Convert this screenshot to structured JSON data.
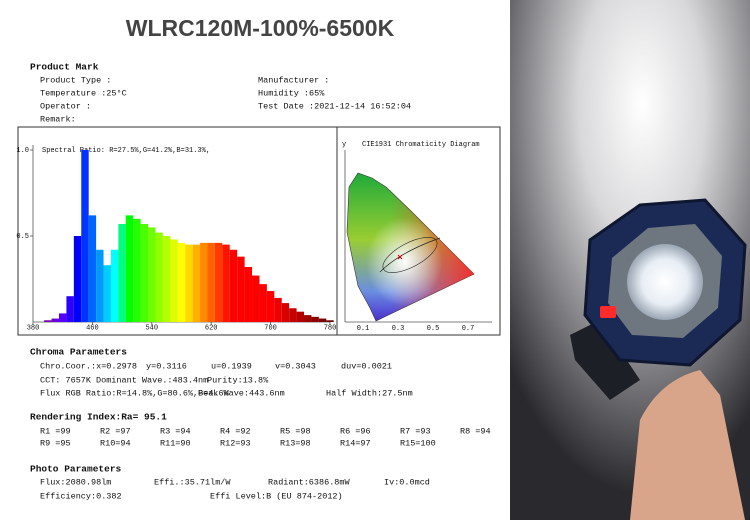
{
  "title": "WLRC120M-100%-6500K",
  "product_mark": {
    "heading": "Product Mark",
    "left": [
      "Product Type :",
      "Temperature :25°C",
      "Operator :",
      "Remark:"
    ],
    "right": [
      "Manufacturer :",
      "Humidity :65%",
      "Test Date :2021-12-14 16:52:04"
    ]
  },
  "chart_data": {
    "type": "area",
    "annotation": "Spectral Ratio: R=27.5%,G=41.2%,B=31.3%,",
    "x": [
      380,
      390,
      400,
      410,
      420,
      430,
      440,
      450,
      460,
      470,
      480,
      490,
      500,
      510,
      520,
      530,
      540,
      550,
      560,
      570,
      580,
      590,
      600,
      610,
      620,
      630,
      640,
      650,
      660,
      670,
      680,
      690,
      700,
      710,
      720,
      730,
      740,
      750,
      760,
      770,
      780
    ],
    "values": [
      0,
      0,
      0.01,
      0.02,
      0.05,
      0.15,
      0.5,
      1.0,
      0.62,
      0.42,
      0.33,
      0.42,
      0.57,
      0.62,
      0.6,
      0.57,
      0.55,
      0.52,
      0.5,
      0.48,
      0.46,
      0.45,
      0.45,
      0.46,
      0.46,
      0.46,
      0.45,
      0.42,
      0.38,
      0.32,
      0.27,
      0.22,
      0.18,
      0.14,
      0.11,
      0.08,
      0.06,
      0.04,
      0.03,
      0.02,
      0.01
    ],
    "xlim": [
      380,
      780
    ],
    "ylim": [
      0,
      1
    ],
    "xticks": [
      380,
      460,
      540,
      620,
      700,
      780
    ],
    "yticks": [
      0.5,
      {
        "value": 1,
        "label": "1.0"
      }
    ]
  },
  "cie": {
    "title": "CIE1931 Chromaticity Diagram",
    "y_label": "y",
    "xticks": [
      "0.1",
      "0.3",
      "0.5",
      "0.7"
    ]
  },
  "chroma": {
    "heading": "Chroma Parameters",
    "rows": [
      [
        "Chro.Coor.:x=0.2978",
        "y=0.3116",
        "u=0.1939",
        "v=0.3043",
        "duv=0.0021"
      ],
      [
        "CCT: 7657K",
        "Dominant Wave.:483.4nm",
        "Purity:13.8%"
      ],
      [
        "Flux RGB Ratio:R=14.8%,G=80.6%,B=4.6%",
        "Peak Wave:443.6nm",
        "Half Width:27.5nm"
      ]
    ]
  },
  "rendering": {
    "heading": "Rendering Index:Ra= 95.1",
    "rows": [
      [
        "R1 =99",
        "R2 =97",
        "R3 =94",
        "R4 =92",
        "R5 =98",
        "R6 =96",
        "R7 =93",
        "R8 =94"
      ],
      [
        "R9 =95",
        "R10=94",
        "R11=90",
        "R12=93",
        "R13=98",
        "R14=97",
        "R15=100"
      ]
    ]
  },
  "photo": {
    "heading": "Photo Parameters",
    "rows": [
      [
        "Flux:2080.98lm",
        "Effi.:35.71lm/W",
        "Radiant:6386.8mW",
        "Iv:0.0mcd"
      ],
      [
        "Efficiency:0.382",
        "Effi Level:B (EU 874-2012)"
      ]
    ]
  }
}
